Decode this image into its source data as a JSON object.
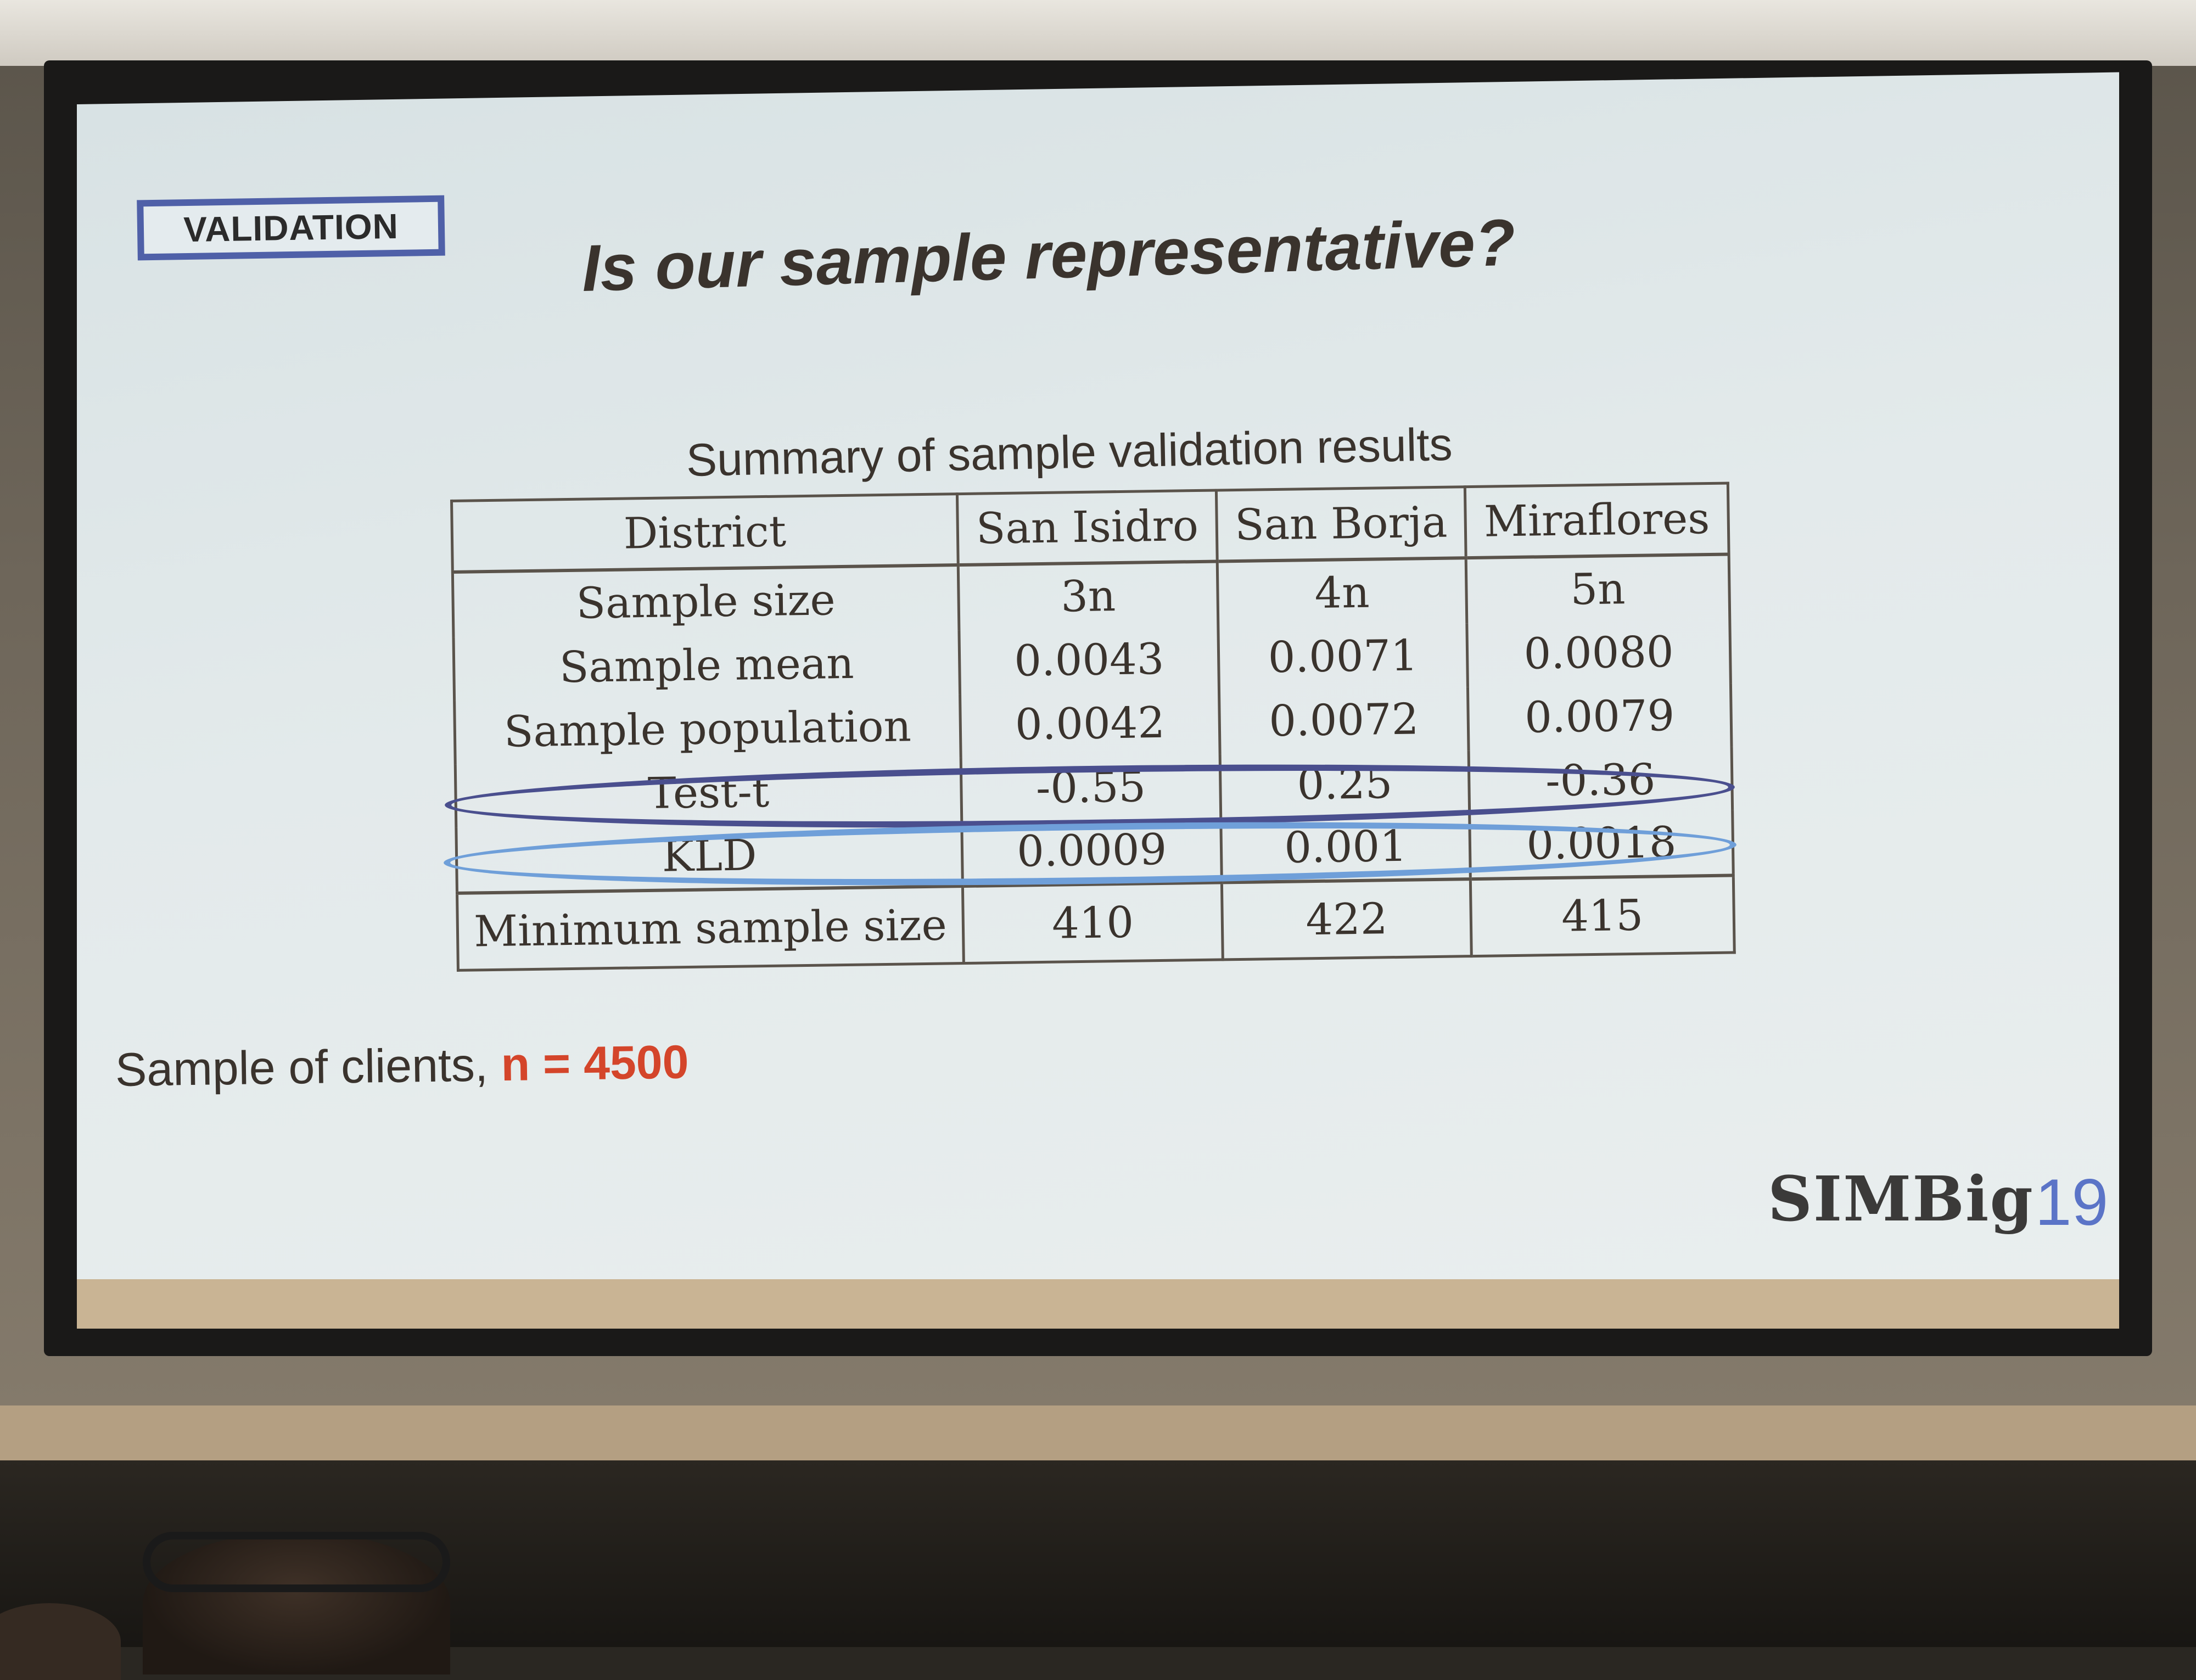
{
  "slide": {
    "tag": "VALIDATION",
    "title": "Is our sample representative?",
    "table_caption": "Summary of sample validation results",
    "table": {
      "header": [
        "District",
        "San Isidro",
        "San Borja",
        "Miraflores"
      ],
      "rows": [
        [
          "Sample size",
          "3n",
          "4n",
          "5n"
        ],
        [
          "Sample mean",
          "0.0043",
          "0.0071",
          "0.0080"
        ],
        [
          "Sample population",
          "0.0042",
          "0.0072",
          "0.0079"
        ],
        [
          "Test-t",
          "-0.55",
          "0.25",
          "-0.36"
        ],
        [
          "KLD",
          "0.0009",
          "0.001",
          "0.0018"
        ],
        [
          "Minimum sample size",
          "410",
          "422",
          "415"
        ]
      ]
    },
    "note_prefix": "Sample of clients, ",
    "note_value": "n = 4500",
    "logo": {
      "text": "SIMBig",
      "year": "19"
    }
  },
  "colors": {
    "tag_border": "#4f60a8",
    "highlight_test_t": "#4a4f8e",
    "highlight_kld": "#6f9fd9",
    "note_value": "#d4452a",
    "logo_year": "#5b74c7"
  }
}
